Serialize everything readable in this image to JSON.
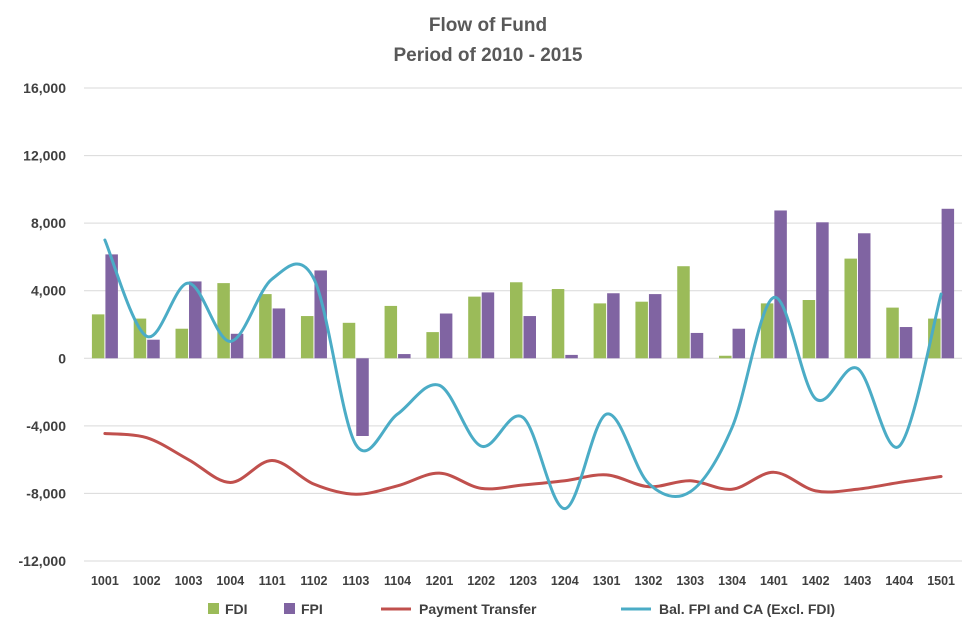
{
  "chart_data": {
    "type": "bar",
    "title": "Flow of Fund",
    "subtitle": "Period of 2010 - 2015",
    "categories": [
      "1001",
      "1002",
      "1003",
      "1004",
      "1101",
      "1102",
      "1103",
      "1104",
      "1201",
      "1202",
      "1203",
      "1204",
      "1301",
      "1302",
      "1303",
      "1304",
      "1401",
      "1402",
      "1403",
      "1404",
      "1501"
    ],
    "ylim": [
      -12000,
      16000
    ],
    "yticks": [
      16000,
      12000,
      8000,
      4000,
      0,
      -4000,
      -8000,
      -12000
    ],
    "ytick_labels": [
      "16,000",
      "12,000",
      "8,000",
      "4,000",
      "0",
      "-4,000",
      "-8,000",
      "-12,000"
    ],
    "grid": true,
    "legend_position": "bottom",
    "series": [
      {
        "name": "FDI",
        "kind": "bar",
        "color": "#9BBB59",
        "values": [
          2600,
          2350,
          1750,
          4450,
          3800,
          2500,
          2100,
          3100,
          1550,
          3650,
          4500,
          4100,
          3250,
          3350,
          5450,
          150,
          3250,
          3450,
          5900,
          3000,
          2350
        ]
      },
      {
        "name": "FPI",
        "kind": "bar",
        "color": "#8064A2",
        "values": [
          6150,
          1100,
          4550,
          1450,
          2950,
          5200,
          -4600,
          250,
          2650,
          3900,
          2500,
          200,
          3850,
          3800,
          1500,
          1750,
          8750,
          8050,
          7400,
          1850,
          8850
        ]
      },
      {
        "name": "Payment Transfer",
        "kind": "line",
        "color": "#C0504D",
        "values": [
          -4450,
          -4700,
          -6000,
          -7350,
          -6050,
          -7450,
          -8050,
          -7550,
          -6800,
          -7700,
          -7500,
          -7250,
          -6900,
          -7600,
          -7250,
          -7750,
          -6750,
          -7850,
          -7750,
          -7350,
          -7000
        ]
      },
      {
        "name": "Bal. FPI and CA (Excl. FDI)",
        "kind": "line",
        "color": "#4BACC6",
        "values": [
          7000,
          1300,
          4450,
          1000,
          4700,
          4700,
          -5100,
          -3300,
          -1600,
          -5200,
          -3500,
          -8900,
          -3300,
          -7400,
          -7900,
          -4100,
          3600,
          -2400,
          -600,
          -5200,
          3800
        ]
      }
    ]
  }
}
